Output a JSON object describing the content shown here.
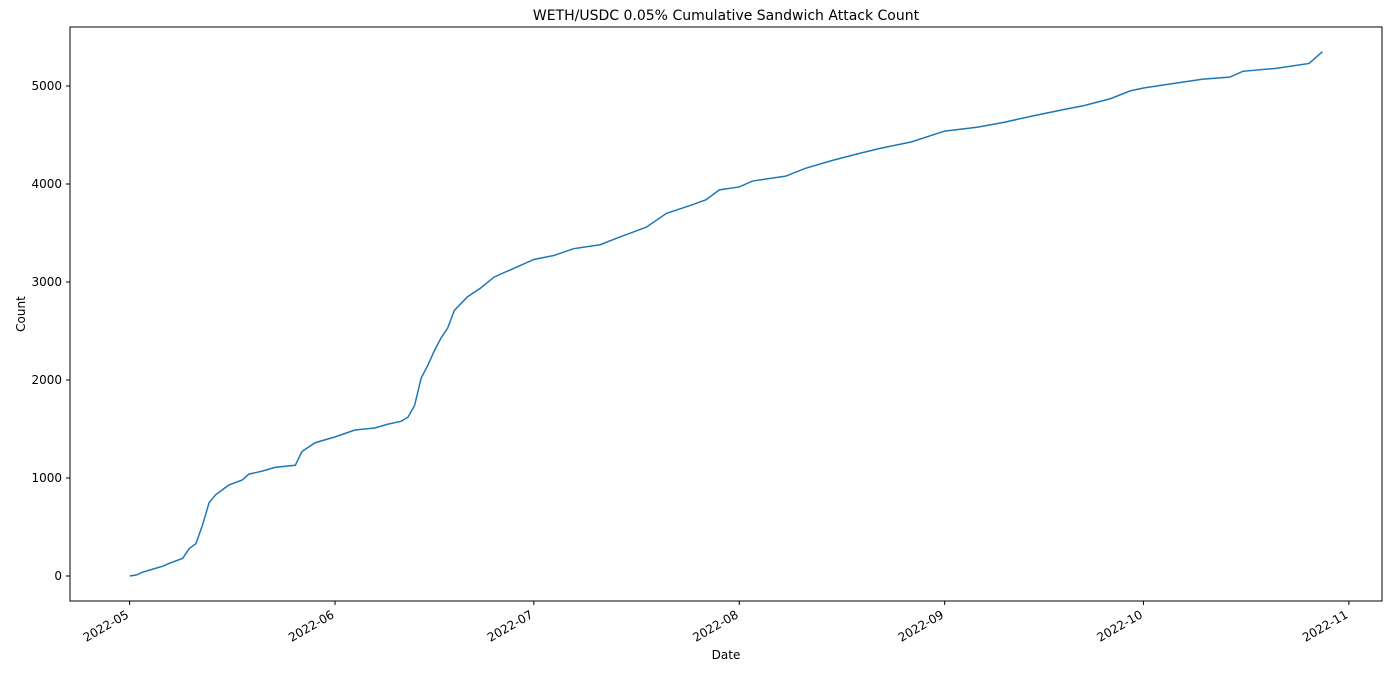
{
  "chart_data": {
    "type": "line",
    "title": "WETH/USDC 0.05% Cumulative Sandwich Attack Count",
    "x_label": "Date",
    "y_label": "Count",
    "x": [
      "2022-05-01",
      "2022-05-02",
      "2022-05-03",
      "2022-05-04",
      "2022-05-06",
      "2022-05-07",
      "2022-05-09",
      "2022-05-10",
      "2022-05-11",
      "2022-05-12",
      "2022-05-13",
      "2022-05-14",
      "2022-05-15",
      "2022-05-16",
      "2022-05-18",
      "2022-05-19",
      "2022-05-21",
      "2022-05-23",
      "2022-05-26",
      "2022-05-27",
      "2022-05-29",
      "2022-06-01",
      "2022-06-04",
      "2022-06-07",
      "2022-06-09",
      "2022-06-11",
      "2022-06-12",
      "2022-06-13",
      "2022-06-14",
      "2022-06-15",
      "2022-06-16",
      "2022-06-17",
      "2022-06-18",
      "2022-06-19",
      "2022-06-21",
      "2022-06-23",
      "2022-06-25",
      "2022-06-28",
      "2022-07-01",
      "2022-07-04",
      "2022-07-07",
      "2022-07-11",
      "2022-07-14",
      "2022-07-18",
      "2022-07-21",
      "2022-07-25",
      "2022-07-27",
      "2022-07-29",
      "2022-08-01",
      "2022-08-03",
      "2022-08-08",
      "2022-08-11",
      "2022-08-15",
      "2022-08-19",
      "2022-08-22",
      "2022-08-27",
      "2022-09-01",
      "2022-09-06",
      "2022-09-10",
      "2022-09-14",
      "2022-09-19",
      "2022-09-22",
      "2022-09-26",
      "2022-09-29",
      "2022-10-01",
      "2022-10-05",
      "2022-10-10",
      "2022-10-14",
      "2022-10-16",
      "2022-10-21",
      "2022-10-26",
      "2022-10-27",
      "2022-10-28"
    ],
    "series": [
      {
        "name": "Count",
        "color": "#1f77b4",
        "values": [
          0,
          10,
          40,
          60,
          100,
          130,
          180,
          280,
          330,
          520,
          750,
          830,
          880,
          930,
          980,
          1040,
          1070,
          1110,
          1130,
          1270,
          1360,
          1420,
          1490,
          1510,
          1550,
          1580,
          1620,
          1740,
          2020,
          2150,
          2300,
          2430,
          2530,
          2710,
          2850,
          2940,
          3050,
          3140,
          3230,
          3270,
          3340,
          3380,
          3460,
          3560,
          3700,
          3790,
          3840,
          3940,
          3970,
          4030,
          4080,
          4160,
          4240,
          4310,
          4360,
          4430,
          4540,
          4580,
          4630,
          4690,
          4760,
          4800,
          4870,
          4950,
          4980,
          5020,
          5070,
          5090,
          5150,
          5180,
          5230,
          5290,
          5350
        ]
      }
    ],
    "xlim": [
      "2022-04-22",
      "2022-11-06"
    ],
    "xticks": [
      {
        "value": "2022-05-01",
        "label": "2022-05"
      },
      {
        "value": "2022-06-01",
        "label": "2022-06"
      },
      {
        "value": "2022-07-01",
        "label": "2022-07"
      },
      {
        "value": "2022-08-01",
        "label": "2022-08"
      },
      {
        "value": "2022-09-01",
        "label": "2022-09"
      },
      {
        "value": "2022-10-01",
        "label": "2022-10"
      },
      {
        "value": "2022-11-01",
        "label": "2022-11"
      }
    ],
    "ylim": [
      -255,
      5602
    ],
    "yticks": [
      0,
      1000,
      2000,
      3000,
      4000,
      5000
    ],
    "grid": false
  }
}
